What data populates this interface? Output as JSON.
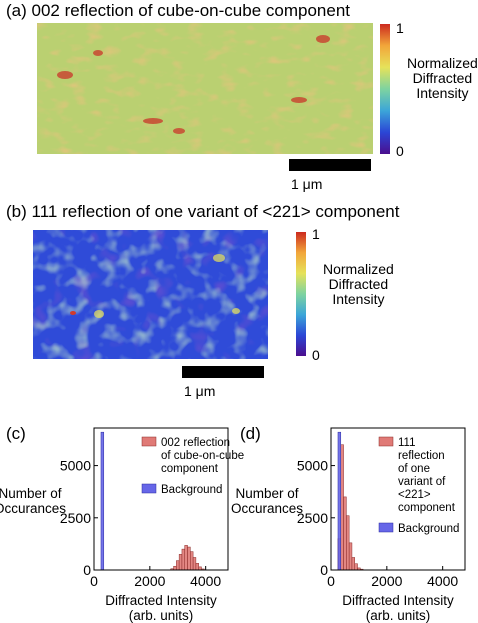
{
  "panels": {
    "a": {
      "label": "(a)",
      "title": "002 reflection of cube-on-cube component",
      "scalebar": "1 μm"
    },
    "b": {
      "label": "(b)",
      "title": "111 reflection of one variant of <221> component",
      "scalebar": "1 μm"
    }
  },
  "colorbar": {
    "max_label": "1",
    "min_label": "0",
    "label_lines": [
      "Normalized",
      "Diffracted",
      "Intensity"
    ],
    "colors": [
      "#4b0e8e",
      "#2b46d6",
      "#3ca6d8",
      "#7ed3a0",
      "#e6e25a",
      "#f2a63a",
      "#cc2a1f"
    ]
  },
  "chart_data": [
    {
      "type": "bar",
      "panel": "(c)",
      "xlabel": "Diffracted Intensity (arb. units)",
      "ylabel": "Number of Occurances",
      "xlim": [
        0,
        4800
      ],
      "ylim": [
        0,
        6800
      ],
      "xticks": [
        0,
        2000,
        4000
      ],
      "yticks": [
        0,
        2500,
        5000
      ],
      "series": [
        {
          "name": "002 reflection of cube-on-cube component",
          "color": "#e07a76",
          "bin_width": 100,
          "x": [
            2800,
            2900,
            3000,
            3100,
            3200,
            3300,
            3400,
            3500,
            3600,
            3700,
            3800,
            3900
          ],
          "values": [
            60,
            180,
            450,
            750,
            1000,
            1180,
            1100,
            880,
            600,
            320,
            150,
            50
          ]
        },
        {
          "name": "Background",
          "color": "#6666e8",
          "bin_width": 100,
          "x": [
            300
          ],
          "values": [
            6600
          ]
        }
      ]
    },
    {
      "type": "bar",
      "panel": "(d)",
      "xlabel": "Diffracted Intensity (arb. units)",
      "ylabel": "Number of Occurances",
      "xlim": [
        0,
        4800
      ],
      "ylim": [
        0,
        6800
      ],
      "xticks": [
        0,
        2000,
        4000
      ],
      "yticks": [
        0,
        2500,
        5000
      ],
      "series": [
        {
          "name": "111 reflection of one variant of <221> component",
          "color": "#e07a76",
          "bin_width": 100,
          "x": [
            300,
            400,
            500,
            600,
            700,
            800,
            900,
            1000,
            1100
          ],
          "values": [
            1500,
            6000,
            3500,
            2600,
            1300,
            600,
            300,
            100,
            40
          ]
        },
        {
          "name": "Background",
          "color": "#6666e8",
          "bin_width": 100,
          "x": [
            300
          ],
          "values": [
            6600
          ]
        }
      ]
    }
  ]
}
